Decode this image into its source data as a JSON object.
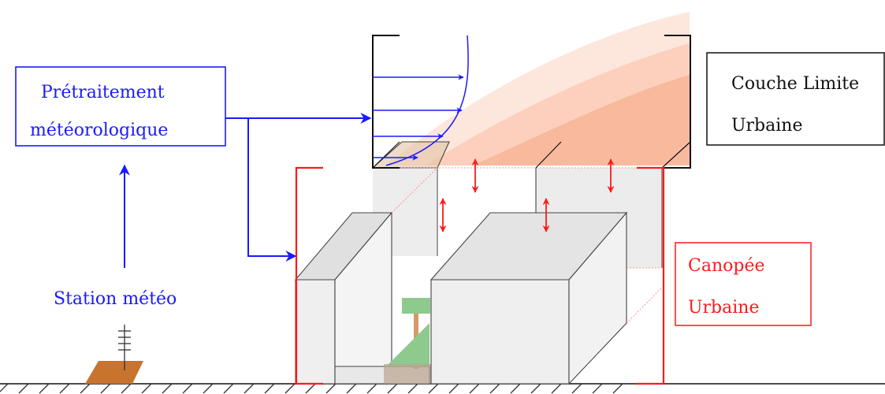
{
  "labels": {
    "pretraitement_line1": "Prétraitement",
    "pretraitement_line2": "météorologique",
    "station": "Station météo",
    "couche_line1": "Couche Limite",
    "couche_line2": "Urbaine",
    "canopee_line1": "Canopée",
    "canopee_line2": "Urbaine"
  },
  "colors": {
    "flow_arrow": "#1a1aff",
    "canopy_bracket": "#ff1a1a",
    "exchange_arrow": "#ff1a1a",
    "boundary_bracket": "#111111",
    "ground_patch": "#c8732e",
    "tree_foliage": "#8ec98e",
    "tree_trunk": "#d49a6a",
    "building_fill": "#ececec",
    "boundary_layer_gradient": "#f6a27d"
  },
  "icons": {
    "station": "weather-station-antenna-icon",
    "tree": "tree-icon",
    "wind_profile": "wind-profile-icon"
  }
}
